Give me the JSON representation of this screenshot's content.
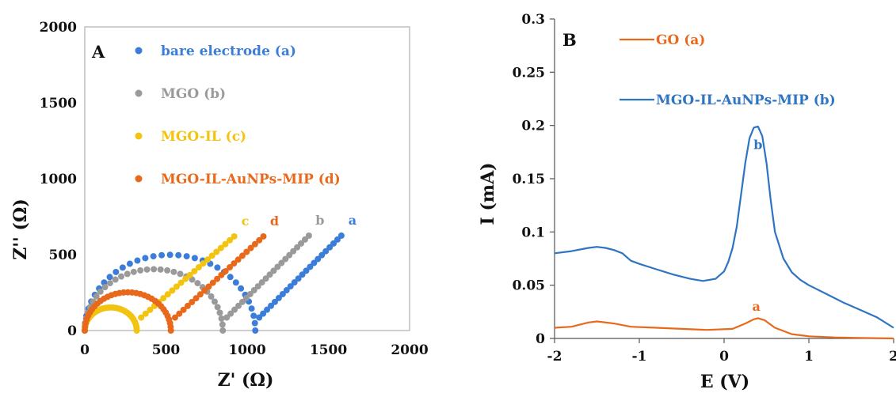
{
  "chart_data": [
    {
      "type": "scatter",
      "panel_label": "A",
      "xlabel": "Z' (Ω)",
      "ylabel": "Z'' (Ω)",
      "xlim": [
        0,
        2000
      ],
      "ylim": [
        0,
        2000
      ],
      "x_ticks": [
        "0",
        "500",
        "1000",
        "1500",
        "2000"
      ],
      "y_ticks": [
        "0",
        "500",
        "1000",
        "1500",
        "2000"
      ],
      "grid": false,
      "legend_position": "top-left",
      "series": [
        {
          "name": "bare electrode (a)",
          "curve_label": "a",
          "color": "#3b7dd8",
          "Rct": 1050,
          "end": [
            1580,
            625
          ]
        },
        {
          "name": "MGO (b)",
          "curve_label": "b",
          "color": "#9a9a9a",
          "Rct": 850,
          "end": [
            1380,
            625
          ]
        },
        {
          "name": "MGO-IL (c)",
          "curve_label": "c",
          "color": "#f2c30f",
          "Rct": 320,
          "end": [
            920,
            620
          ]
        },
        {
          "name": "MGO-IL-AuNPs-MIP (d)",
          "curve_label": "d",
          "color": "#e8691c",
          "Rct": 530,
          "end": [
            1100,
            620
          ]
        }
      ]
    },
    {
      "type": "line",
      "panel_label": "B",
      "xlabel": "E (V)",
      "ylabel": "I (mA)",
      "xlim": [
        -2,
        2
      ],
      "ylim": [
        0,
        0.3
      ],
      "x_ticks": [
        "-2",
        "-1",
        "0",
        "1",
        "2"
      ],
      "y_ticks": [
        "0",
        "0.05",
        "0.1",
        "0.15",
        "0.2",
        "0.25",
        "0.3"
      ],
      "grid": false,
      "legend_position": "top-left",
      "series": [
        {
          "name": "GO (a)",
          "curve_label": "a",
          "color": "#e8691c",
          "x": [
            -2,
            -1.8,
            -1.6,
            -1.5,
            -1.3,
            -1.1,
            -0.8,
            -0.5,
            -0.2,
            0.1,
            0.25,
            0.35,
            0.4,
            0.48,
            0.6,
            0.8,
            1.0,
            1.3,
            1.6,
            2.0
          ],
          "y": [
            0.01,
            0.011,
            0.015,
            0.016,
            0.014,
            0.011,
            0.01,
            0.009,
            0.008,
            0.009,
            0.014,
            0.018,
            0.019,
            0.017,
            0.01,
            0.004,
            0.002,
            0.001,
            0.0005,
            0.0
          ]
        },
        {
          "name": "MGO-IL-AuNPs-MIP (b)",
          "curve_label": "b",
          "color": "#2f74c0",
          "x": [
            -2,
            -1.8,
            -1.6,
            -1.5,
            -1.4,
            -1.3,
            -1.2,
            -1.1,
            -1.0,
            -0.8,
            -0.6,
            -0.4,
            -0.25,
            -0.1,
            0.0,
            0.05,
            0.1,
            0.15,
            0.2,
            0.25,
            0.3,
            0.35,
            0.4,
            0.45,
            0.5,
            0.55,
            0.6,
            0.7,
            0.8,
            0.9,
            1.0,
            1.2,
            1.4,
            1.6,
            1.8,
            2.0
          ],
          "y": [
            0.08,
            0.082,
            0.085,
            0.086,
            0.085,
            0.083,
            0.08,
            0.073,
            0.07,
            0.065,
            0.06,
            0.056,
            0.054,
            0.056,
            0.063,
            0.072,
            0.085,
            0.105,
            0.135,
            0.165,
            0.188,
            0.198,
            0.199,
            0.19,
            0.165,
            0.13,
            0.1,
            0.075,
            0.062,
            0.055,
            0.05,
            0.042,
            0.034,
            0.027,
            0.02,
            0.01
          ]
        }
      ]
    }
  ]
}
